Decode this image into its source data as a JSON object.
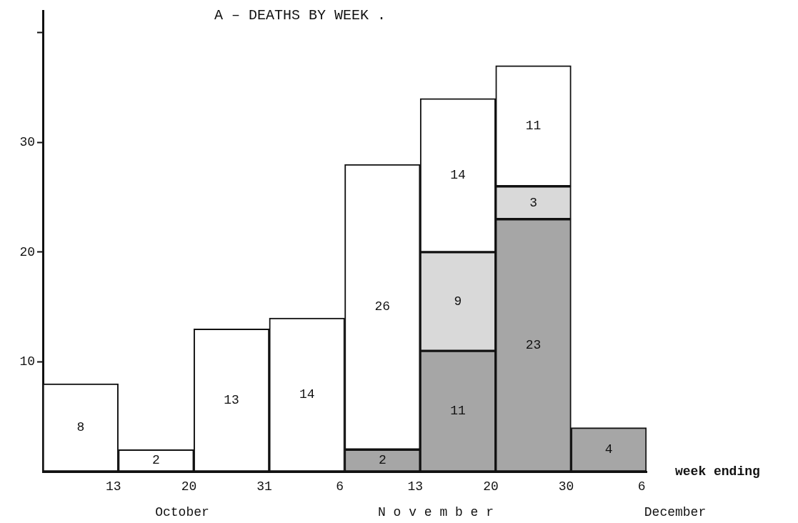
{
  "chart_data": {
    "type": "bar",
    "title": "A – DEATHS BY WEEK .",
    "xlabel": "week ending",
    "categories": [
      "13",
      "20",
      "31",
      "6",
      "13",
      "20",
      "30",
      "6"
    ],
    "ylim": [
      0,
      42
    ],
    "yticks": [
      10,
      20,
      30,
      {
        "value": 40,
        "label": null
      }
    ],
    "stacked": true,
    "series": [
      {
        "color": "#a6a6a6",
        "values": [
          null,
          null,
          null,
          null,
          2,
          11,
          23,
          4
        ]
      },
      {
        "color": "#d9d9d9",
        "values": [
          null,
          null,
          null,
          null,
          null,
          9,
          3,
          null
        ]
      },
      {
        "color": "#ffffff",
        "values": [
          8,
          2,
          13,
          14,
          26,
          14,
          11,
          null
        ]
      }
    ],
    "data_labels": true,
    "annotations": [
      "October",
      "N o v e m b e r",
      "December"
    ],
    "grid": false,
    "legend": false
  }
}
